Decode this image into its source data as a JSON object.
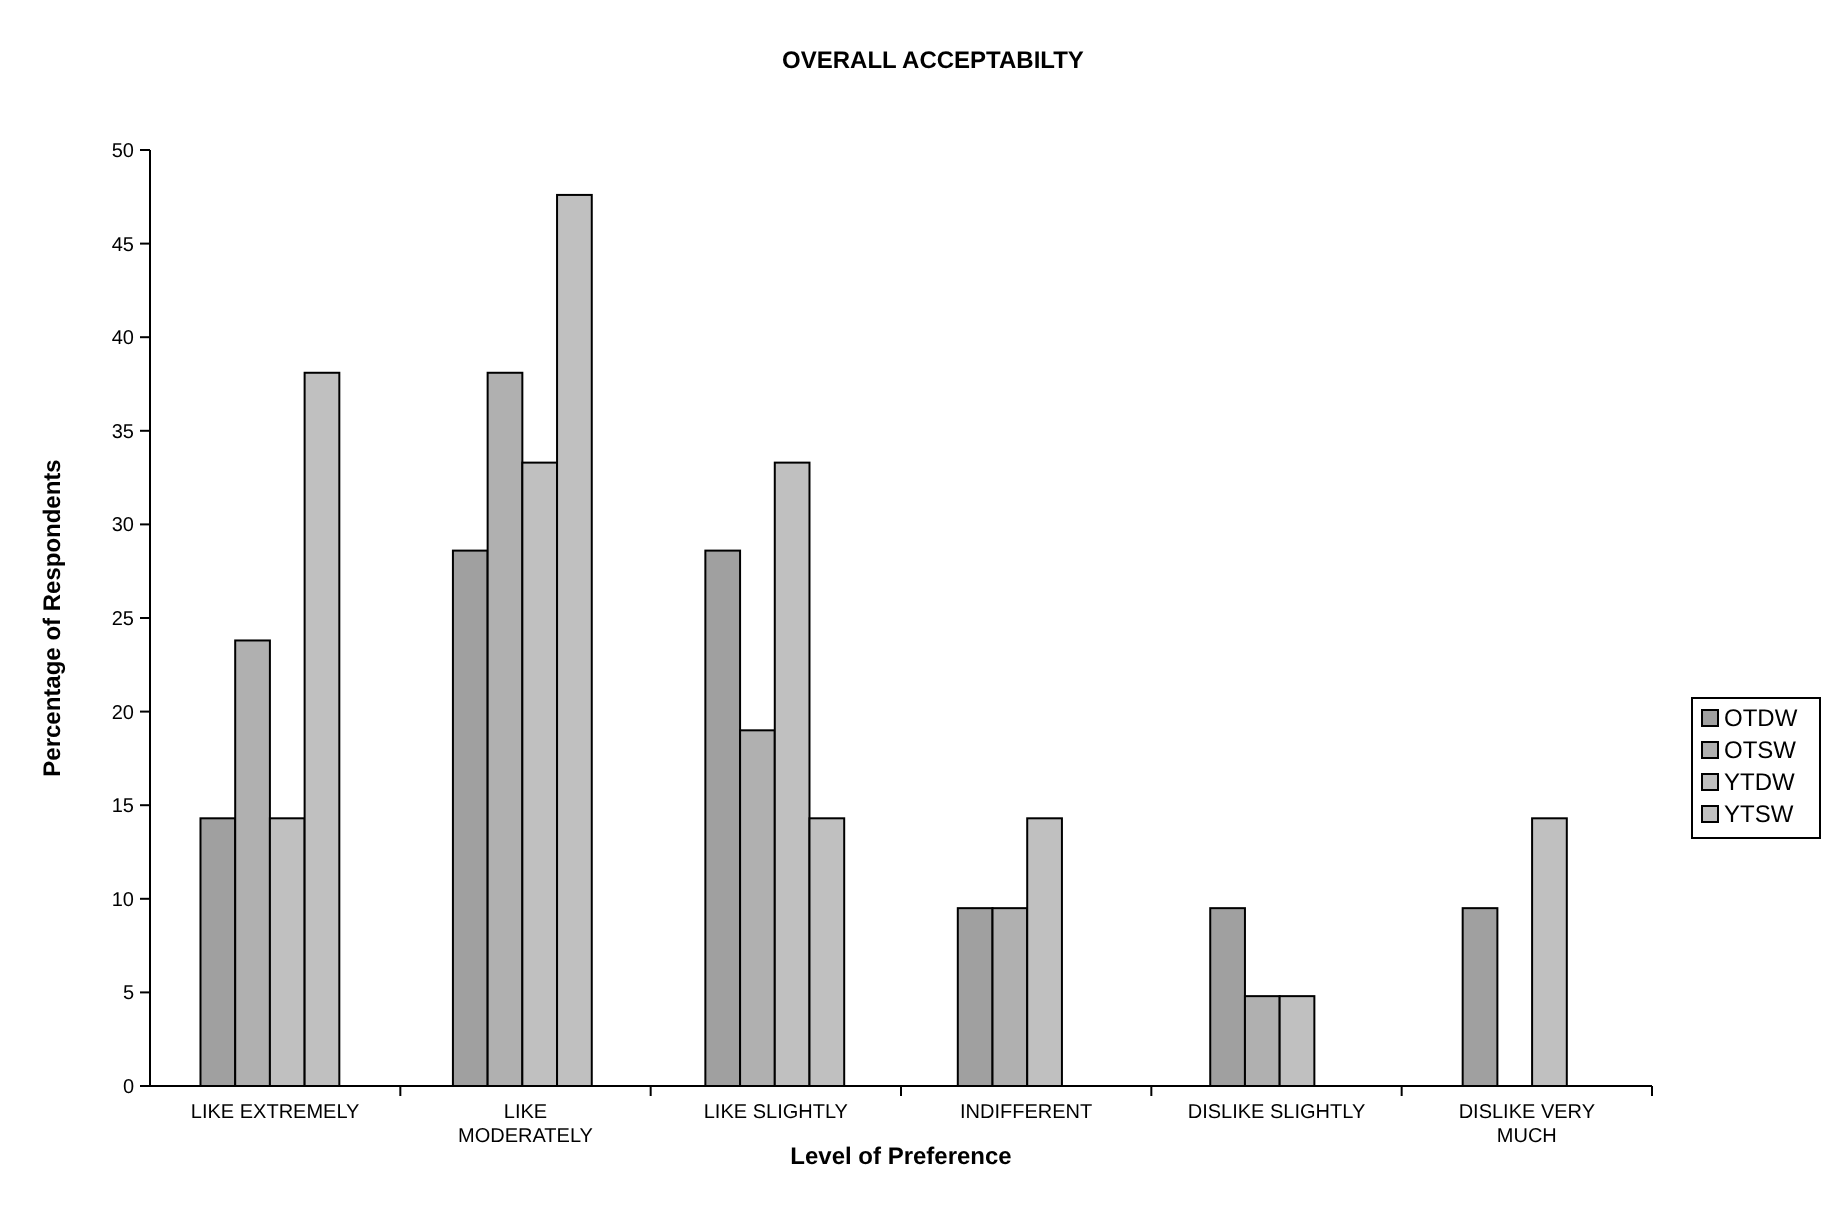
{
  "chart_data": {
    "type": "bar",
    "title": "OVERALL ACCEPTABILTY",
    "xlabel": "Level of Preference",
    "ylabel": "Percentage of Respondents",
    "categories": [
      "LIKE EXTREMELY",
      "LIKE MODERATELY",
      "LIKE SLIGHTLY",
      "INDIFFERENT",
      "DISLIKE SLIGHTLY",
      "DISLIKE VERY MUCH"
    ],
    "series": [
      {
        "name": "OTDW",
        "color": "#a0a0a0",
        "values": [
          14.3,
          28.6,
          28.6,
          9.5,
          9.5,
          9.5
        ]
      },
      {
        "name": "OTSW",
        "color": "#b0b0b0",
        "values": [
          23.8,
          38.1,
          19.0,
          9.5,
          4.8,
          0
        ]
      },
      {
        "name": "YTDW",
        "color": "#c0c0c0",
        "values": [
          14.3,
          33.3,
          33.3,
          14.3,
          4.8,
          14.3
        ]
      },
      {
        "name": "YTSW",
        "color": "#c0c0c0",
        "values": [
          38.1,
          47.6,
          14.3,
          0,
          0,
          0
        ]
      }
    ],
    "ylim": [
      0,
      50
    ],
    "yticks": [
      0,
      5,
      10,
      15,
      20,
      25,
      30,
      35,
      40,
      45,
      50
    ],
    "grid": false,
    "legend": "right"
  }
}
